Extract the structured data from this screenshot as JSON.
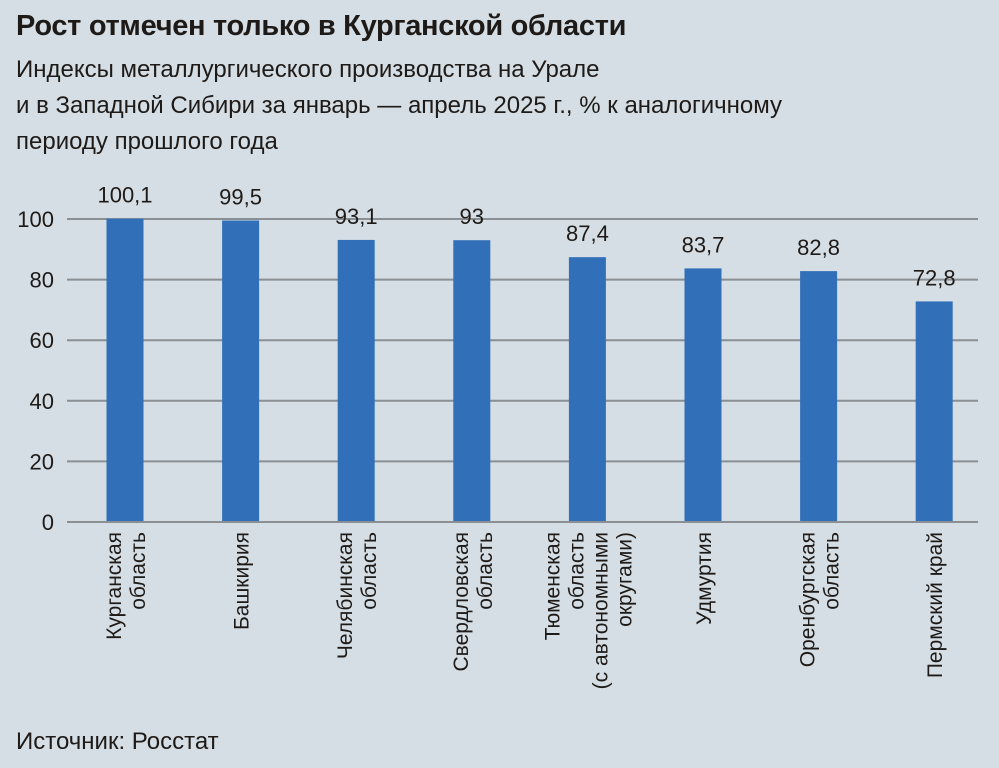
{
  "chart_data": {
    "type": "bar",
    "title": "Рост отмечен только в Курганской области",
    "subtitle": [
      "Индексы металлургического производства на Урале",
      "и в Западной Сибири за январь — апрель 2025 г., % к аналогичному",
      "периоду прошлого года"
    ],
    "categories": [
      [
        "Курганская",
        "область"
      ],
      [
        "Башкирия"
      ],
      [
        "Челябинская",
        "область"
      ],
      [
        "Свердловская",
        "область"
      ],
      [
        "Тюменская",
        "область",
        "(с автономными",
        "округами)"
      ],
      [
        "Удмуртия"
      ],
      [
        "Оренбургская",
        "область"
      ],
      [
        "Пермский край"
      ]
    ],
    "values": [
      100.1,
      99.5,
      93.1,
      93,
      87.4,
      83.7,
      82.8,
      72.8
    ],
    "data_labels": [
      "100,1",
      "99,5",
      "93,1",
      "93",
      "87,4",
      "83,7",
      "82,8",
      "72,8"
    ],
    "yticks": [
      "0",
      "20",
      "40",
      "60",
      "80",
      "100"
    ],
    "ylim": [
      0,
      100
    ],
    "grid": true,
    "bar_color": "#3170b8",
    "source": "Источник: Росстат"
  }
}
